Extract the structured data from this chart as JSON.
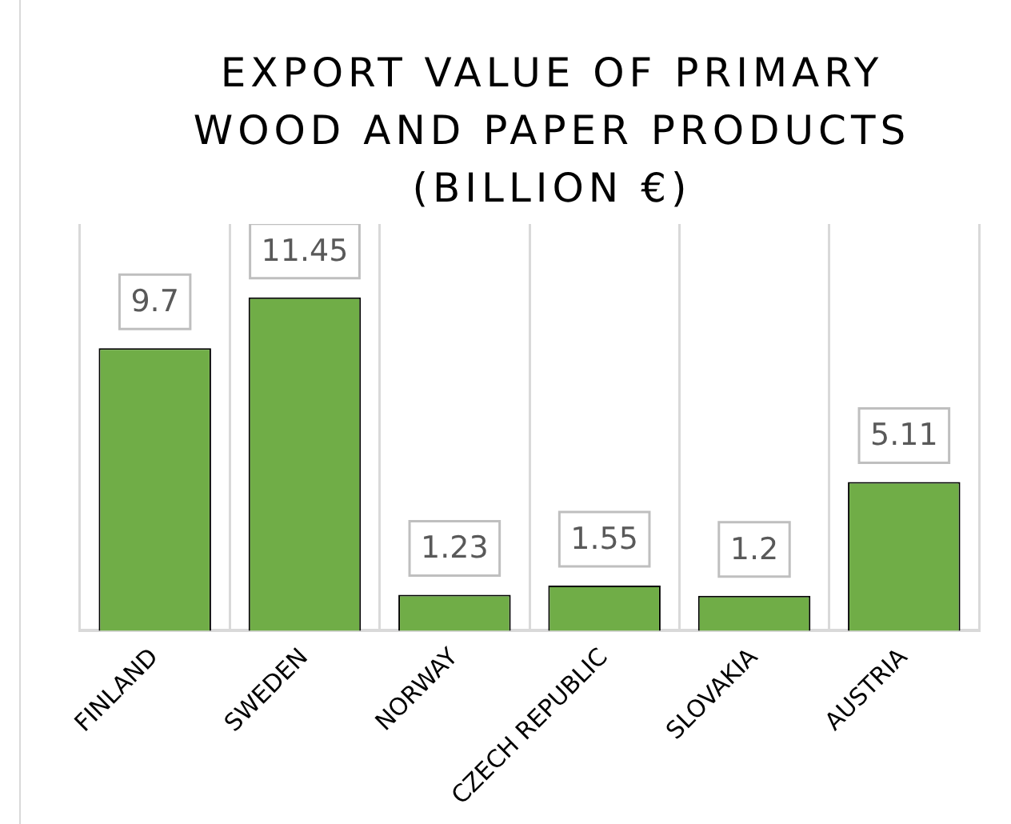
{
  "chart_data": {
    "type": "bar",
    "title": "EXPORT VALUE OF PRIMARY WOOD AND PAPER PRODUCTS (BILLION €)",
    "categories": [
      "FINLAND",
      "SWEDEN",
      "NORWAY",
      "CZECH REPUBLIC",
      "SLOVAKIA",
      "AUSTRIA"
    ],
    "values": [
      9.7,
      11.45,
      1.23,
      1.55,
      1.2,
      5.11
    ],
    "color": "#70ad47",
    "data_labels": true,
    "grid": "x",
    "tick_labels": "x",
    "legend": false
  }
}
